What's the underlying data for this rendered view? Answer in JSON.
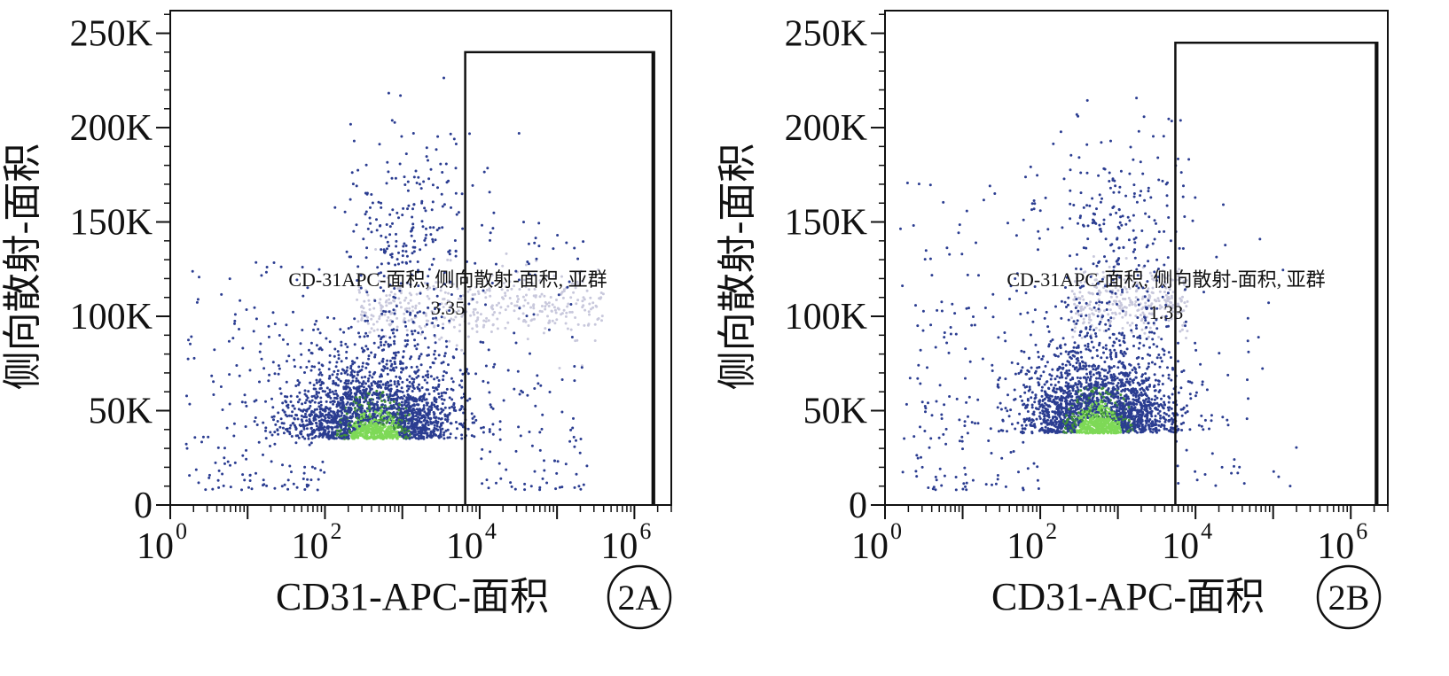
{
  "figure": {
    "background": "#ffffff",
    "dot_colors": {
      "low": "#2b3d91",
      "mid": "#3f8f3a",
      "high": "#7ed957",
      "faint": "#c8c8dc"
    }
  },
  "chart_data": [
    {
      "type": "scatter",
      "panel_tag": "2A",
      "title": "",
      "xlabel": "CD31-APC-面积",
      "ylabel": "侧向散射-面积",
      "x_scale": "log",
      "xlim": [
        1,
        3000000
      ],
      "ylim": [
        0,
        262000
      ],
      "x_ticks": [
        {
          "base": "10",
          "exp": "0",
          "value": 1
        },
        {
          "base": "10",
          "exp": "2",
          "value": 100
        },
        {
          "base": "10",
          "exp": "4",
          "value": 10000
        },
        {
          "base": "10",
          "exp": "6",
          "value": 1000000
        }
      ],
      "y_ticks": [
        {
          "label": "0",
          "value": 0
        },
        {
          "label": "50K",
          "value": 50000
        },
        {
          "label": "100K",
          "value": 100000
        },
        {
          "label": "150K",
          "value": 150000
        },
        {
          "label": "200K",
          "value": 200000
        },
        {
          "label": "250K",
          "value": 250000
        }
      ],
      "grid": false,
      "gate": {
        "name": "CD-31APC-面积, 侧向散射-面积, 亚群",
        "percent": "3.35",
        "x_range": [
          6500,
          1800000
        ],
        "y_range": [
          0,
          240000
        ]
      },
      "population": {
        "main_cluster": {
          "x_log_center": 2.65,
          "x_log_sd": 0.55,
          "y_center": 35000,
          "y_sd": 27000,
          "n": 2300
        },
        "upper_scatter": {
          "x_log_center": 3.1,
          "x_log_sd": 0.45,
          "y_center": 140000,
          "y_sd": 30000,
          "n": 260
        },
        "faint_band": {
          "x_log_range": [
            2.4,
            5.6
          ],
          "y_center": 105000,
          "y_sd": 9000,
          "n": 420
        },
        "gate_events": {
          "x_log_range": [
            3.9,
            5.4
          ],
          "y_range": [
            8000,
            150000
          ],
          "n": 120
        },
        "sparse_left": {
          "x_log_range": [
            0.2,
            2.0
          ],
          "y_range": [
            8000,
            130000
          ],
          "n": 160
        }
      }
    },
    {
      "type": "scatter",
      "panel_tag": "2B",
      "title": "",
      "xlabel": "CD31-APC-面积",
      "ylabel": "侧向散射-面积",
      "x_scale": "log",
      "xlim": [
        1,
        3000000
      ],
      "ylim": [
        0,
        262000
      ],
      "x_ticks": [
        {
          "base": "10",
          "exp": "0",
          "value": 1
        },
        {
          "base": "10",
          "exp": "2",
          "value": 100
        },
        {
          "base": "10",
          "exp": "4",
          "value": 10000
        },
        {
          "base": "10",
          "exp": "6",
          "value": 1000000
        }
      ],
      "y_ticks": [
        {
          "label": "0",
          "value": 0
        },
        {
          "label": "50K",
          "value": 50000
        },
        {
          "label": "100K",
          "value": 100000
        },
        {
          "label": "150K",
          "value": 150000
        },
        {
          "label": "200K",
          "value": 200000
        },
        {
          "label": "250K",
          "value": 250000
        }
      ],
      "grid": false,
      "gate": {
        "name": "CD-31APC-面积, 侧向散射-面积, 亚群",
        "percent": "1.33",
        "x_range": [
          5500,
          2200000
        ],
        "y_range": [
          0,
          245000
        ]
      },
      "population": {
        "main_cluster": {
          "x_log_center": 2.75,
          "x_log_sd": 0.5,
          "y_center": 38000,
          "y_sd": 28000,
          "n": 2300
        },
        "upper_scatter": {
          "x_log_center": 3.0,
          "x_log_sd": 0.5,
          "y_center": 140000,
          "y_sd": 32000,
          "n": 260
        },
        "faint_band": {
          "x_log_range": [
            2.4,
            3.9
          ],
          "y_center": 108000,
          "y_sd": 9000,
          "n": 320
        },
        "gate_events": {
          "x_log_range": [
            3.75,
            5.3
          ],
          "y_range": [
            10000,
            170000
          ],
          "n": 40
        },
        "sparse_left": {
          "x_log_range": [
            0.2,
            2.0
          ],
          "y_range": [
            8000,
            175000
          ],
          "n": 170
        }
      }
    }
  ]
}
